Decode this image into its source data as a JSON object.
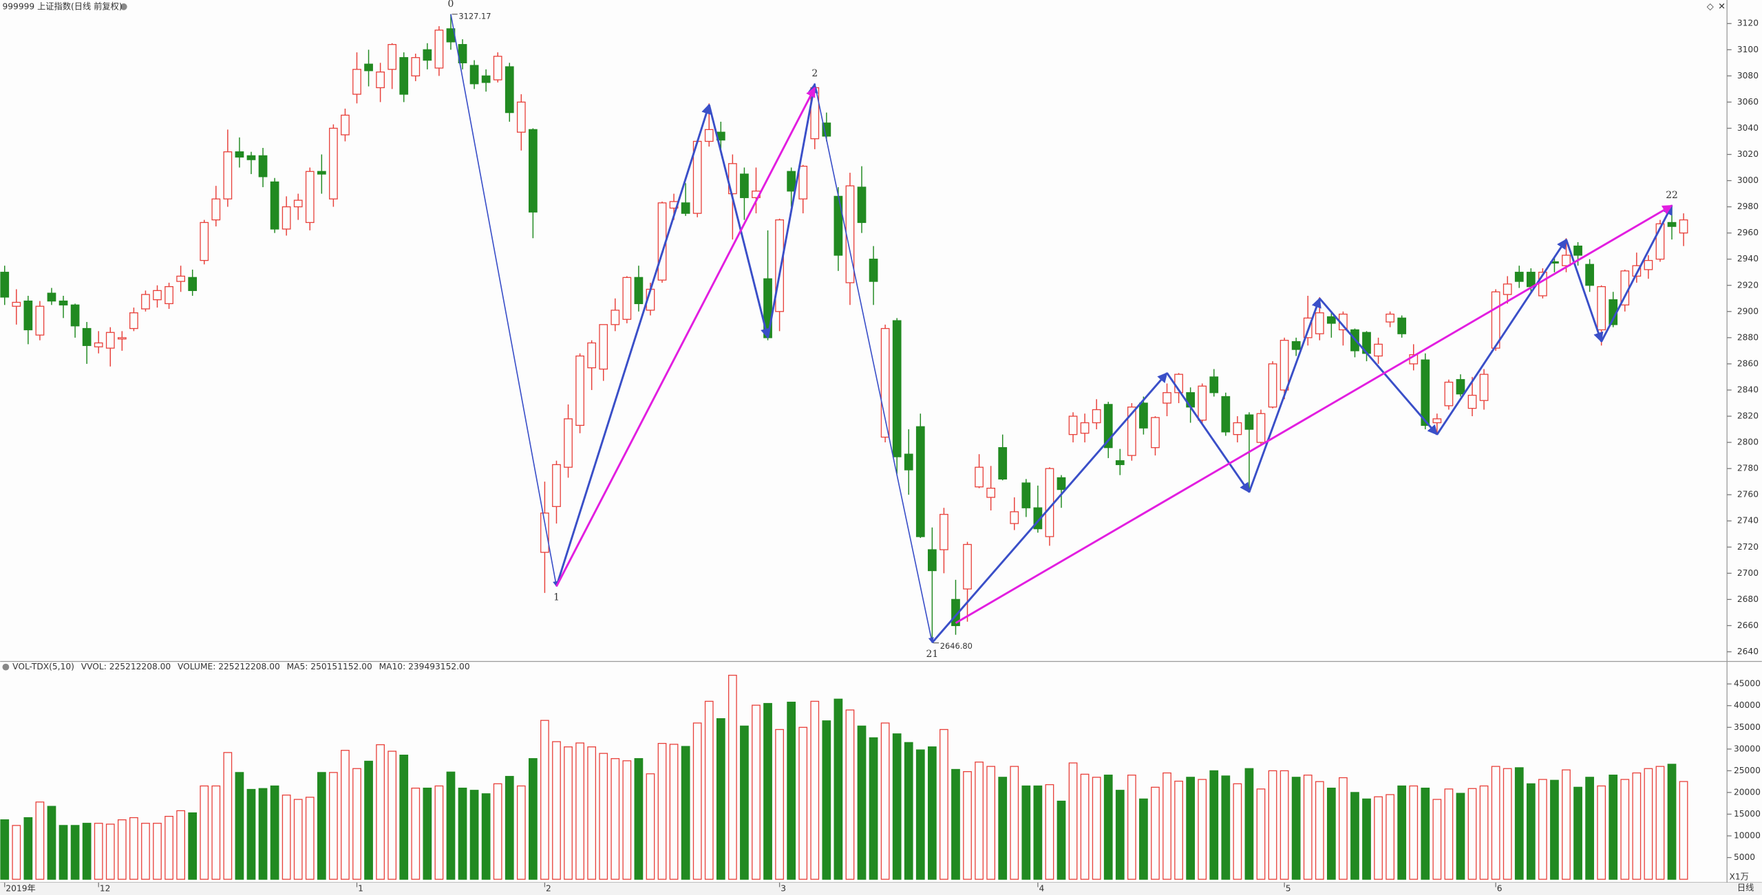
{
  "chart_data": [
    {
      "type": "candlestick",
      "title": "999999 上证指数(日线 前复权)",
      "up_color": "#e8403a",
      "down_color": "#218a21",
      "ylim": [
        2633.5,
        3138
      ],
      "yticks": [
        2640,
        2660,
        2680,
        2700,
        2720,
        2740,
        2760,
        2780,
        2800,
        2820,
        2840,
        2860,
        2880,
        2900,
        2920,
        2940,
        2960,
        2980,
        3000,
        3020,
        3040,
        3060,
        3080,
        3100,
        3120
      ],
      "open": [
        2930,
        2904,
        2908,
        2882,
        2914,
        2908,
        2905,
        2887,
        2873,
        2872,
        2879,
        2887,
        2902,
        2909,
        2906,
        2923,
        2926,
        2939,
        2970,
        2986,
        3022,
        3019,
        3019,
        2999,
        2963,
        2980,
        2968,
        3007,
        2986,
        3035,
        3066,
        3089,
        3071,
        3085,
        3094,
        3080,
        3100,
        3086,
        3116,
        3104,
        3088,
        3080,
        3077,
        3087,
        3037,
        3039,
        2716,
        2751,
        2781,
        2813,
        2857,
        2856,
        2890,
        2894,
        2926,
        2901,
        2924,
        2979,
        2983,
        2975,
        3030,
        3037,
        2990,
        3005,
        2987,
        2925,
        2900,
        3007,
        2986,
        3032,
        3044,
        2988,
        2922,
        2995,
        2940,
        2804,
        2893,
        2791,
        2812,
        2718,
        2718,
        2680,
        2688,
        2766,
        2758,
        2796,
        2738,
        2769,
        2750,
        2728,
        2773,
        2806,
        2807,
        2815,
        2829,
        2786,
        2790,
        2830,
        2796,
        2830,
        2838,
        2838,
        2817,
        2850,
        2835,
        2806,
        2821,
        2800,
        2827,
        2840,
        2877,
        2880,
        2883,
        2896,
        2886,
        2886,
        2884,
        2866,
        2892,
        2895,
        2860,
        2863,
        2815,
        2828,
        2848,
        2826,
        2832,
        2872,
        2913,
        2930,
        2930,
        2912,
        2938,
        2935,
        2950,
        2936,
        2886,
        2909,
        2905,
        2927,
        2932,
        2940,
        2968,
        2960
      ],
      "high": [
        2935,
        2917,
        2912,
        2908,
        2918,
        2912,
        2906,
        2892,
        2885,
        2888,
        2885,
        2903,
        2916,
        2920,
        2922,
        2935,
        2932,
        2970,
        2996,
        3039,
        3033,
        3022,
        3025,
        3002,
        2988,
        2990,
        3010,
        3020,
        3043,
        3055,
        3098,
        3100,
        3090,
        3105,
        3098,
        3097,
        3105,
        3118,
        3127.17,
        3108,
        3092,
        3085,
        3098,
        3090,
        3066,
        3040,
        2770,
        2786,
        2829,
        2868,
        2878,
        2890,
        2910,
        2927,
        2935,
        2922,
        2984,
        2990,
        2998,
        3031,
        3059,
        3045,
        3020,
        3010,
        3010,
        2962,
        2971,
        3010,
        3012,
        3074,
        3052,
        2995,
        3006,
        3011,
        2950,
        2890,
        2895,
        2810,
        2822,
        2735,
        2750,
        2695,
        2724,
        2791,
        2782,
        2806,
        2758,
        2772,
        2767,
        2781,
        2775,
        2823,
        2822,
        2833,
        2831,
        2795,
        2830,
        2835,
        2820,
        2845,
        2853,
        2842,
        2845,
        2856,
        2838,
        2820,
        2823,
        2825,
        2862,
        2880,
        2880,
        2912,
        2911,
        2900,
        2900,
        2887,
        2885,
        2880,
        2900,
        2897,
        2875,
        2868,
        2822,
        2848,
        2852,
        2850,
        2856,
        2917,
        2927,
        2935,
        2933,
        2933,
        2942,
        2956,
        2953,
        2940,
        2920,
        2915,
        2932,
        2945,
        2943,
        2970,
        2981,
        2975
      ],
      "low": [
        2905,
        2890,
        2875,
        2878,
        2905,
        2895,
        2880,
        2860,
        2868,
        2858,
        2870,
        2885,
        2900,
        2903,
        2902,
        2915,
        2912,
        2936,
        2965,
        2980,
        3010,
        3005,
        2995,
        2960,
        2958,
        2970,
        2962,
        2990,
        2980,
        3030,
        3059,
        3072,
        3060,
        3070,
        3060,
        3076,
        3085,
        3080,
        3100,
        3085,
        3070,
        3068,
        3075,
        3045,
        3023,
        2956,
        2685,
        2738,
        2773,
        2807,
        2840,
        2847,
        2885,
        2891,
        2900,
        2897,
        2922,
        2970,
        2973,
        2972,
        3026,
        3021,
        2955,
        2970,
        2975,
        2878,
        2885,
        2980,
        2975,
        3024,
        3030,
        2931,
        2905,
        2960,
        2905,
        2800,
        2776,
        2760,
        2727,
        2646.8,
        2700,
        2653,
        2663,
        2765,
        2748,
        2771,
        2733,
        2743,
        2731,
        2721,
        2750,
        2800,
        2800,
        2810,
        2788,
        2775,
        2786,
        2806,
        2790,
        2820,
        2830,
        2815,
        2814,
        2835,
        2805,
        2800,
        2762,
        2798,
        2826,
        2833,
        2866,
        2874,
        2878,
        2880,
        2874,
        2865,
        2862,
        2860,
        2888,
        2880,
        2855,
        2810,
        2806,
        2825,
        2835,
        2820,
        2825,
        2870,
        2906,
        2918,
        2915,
        2910,
        2930,
        2930,
        2935,
        2915,
        2874,
        2888,
        2900,
        2922,
        2925,
        2938,
        2955,
        2950
      ],
      "close": [
        2911,
        2907,
        2886,
        2904,
        2908,
        2905,
        2889,
        2874,
        2876,
        2884,
        2880,
        2899,
        2913,
        2916,
        2919,
        2927,
        2916,
        2968,
        2986,
        3022,
        3018,
        3016,
        3003,
        2963,
        2980,
        2985,
        3007,
        3005,
        3040,
        3050,
        3085,
        3084,
        3083,
        3104,
        3066,
        3094,
        3092,
        3115,
        3106,
        3090,
        3074,
        3075,
        3095,
        3052,
        3060,
        2976,
        2746,
        2783,
        2818,
        2866,
        2876,
        2890,
        2901,
        2926,
        2906,
        2917,
        2983,
        2984,
        2975,
        3030,
        3039,
        3031,
        3013,
        2987,
        2992,
        2880,
        2970,
        2992,
        3011,
        3071,
        3034,
        2943,
        2996,
        2968,
        2923,
        2887,
        2789,
        2779,
        2728,
        2702,
        2745,
        2660,
        2722,
        2781,
        2765,
        2772,
        2747,
        2750,
        2734,
        2780,
        2764,
        2820,
        2815,
        2825,
        2796,
        2783,
        2827,
        2811,
        2819,
        2838,
        2852,
        2827,
        2843,
        2838,
        2808,
        2815,
        2810,
        2822,
        2860,
        2878,
        2871,
        2895,
        2899,
        2891,
        2898,
        2870,
        2868,
        2875,
        2898,
        2883,
        2867,
        2813,
        2818,
        2846,
        2837,
        2836,
        2852,
        2915,
        2921,
        2923,
        2919,
        2930,
        2937,
        2943,
        2943,
        2920,
        2919,
        2890,
        2931,
        2935,
        2939,
        2967,
        2965,
        2970
      ],
      "waves": [
        {
          "color": "#3a4fc8",
          "x": [
            38,
            47,
            60,
            65,
            69,
            79,
            99,
            106,
            112,
            122,
            133,
            136,
            142
          ],
          "y": [
            3127.17,
            2690,
            3058,
            2880,
            3074,
            2647,
            2853,
            2762,
            2910,
            2806,
            2955,
            2877,
            2981
          ]
        },
        {
          "color": "#e21ee0",
          "x": [
            47,
            69
          ],
          "y": [
            2690,
            3071
          ]
        },
        {
          "color": "#e21ee0",
          "x": [
            81,
            142
          ],
          "y": [
            2662,
            2981
          ]
        }
      ],
      "pivots": [
        {
          "label": "0",
          "x": 38,
          "y": 3127.17
        },
        {
          "label": "1",
          "x": 47,
          "y": 2690
        },
        {
          "label": "2",
          "x": 69,
          "y": 3074
        },
        {
          "label": "21",
          "x": 79,
          "y": 2646.8
        },
        {
          "label": "22",
          "x": 142,
          "y": 2981
        }
      ],
      "extremes": [
        {
          "x": 38,
          "value": 3127.17,
          "label": "3127.17"
        },
        {
          "x": 79,
          "value": 2646.8,
          "label": "2646.80"
        }
      ]
    },
    {
      "type": "bar",
      "header": [
        "VOL-TDX(5,10)",
        "VVOL: 225212208.00",
        "VOLUME: 225212208.00",
        "MA5: 250151152.00",
        "MA10: 239493152.00"
      ],
      "header_colors": [
        "#222222",
        "#222222",
        "#1f7fd0",
        "#1f7fd0",
        "#a0209a"
      ],
      "unit": "X1万",
      "period": "日线",
      "ylim": [
        0,
        47340
      ],
      "yticks": [
        5000,
        10000,
        15000,
        20000,
        25000,
        30000,
        35000,
        40000,
        45000
      ],
      "categories": [
        "2019年",
        null,
        null,
        null,
        null,
        null,
        null,
        null,
        "12",
        null,
        null,
        null,
        null,
        null,
        null,
        null,
        null,
        null,
        null,
        null,
        null,
        null,
        null,
        null,
        null,
        null,
        null,
        null,
        null,
        null,
        "1",
        null,
        null,
        null,
        null,
        null,
        null,
        null,
        null,
        null,
        null,
        null,
        null,
        null,
        null,
        null,
        "2",
        null,
        null,
        null,
        null,
        null,
        null,
        null,
        null,
        null,
        null,
        null,
        null,
        null,
        null,
        null,
        null,
        null,
        null,
        null,
        "3",
        null,
        null,
        null,
        null,
        null,
        null,
        null,
        null,
        null,
        null,
        null,
        null,
        null,
        null,
        null,
        null,
        null,
        null,
        null,
        null,
        null,
        "4",
        null,
        null,
        null,
        null,
        null,
        null,
        null,
        null,
        null,
        null,
        null,
        null,
        null,
        null,
        null,
        null,
        null,
        null,
        null,
        null,
        "5",
        null,
        null,
        null,
        null,
        null,
        null,
        null,
        null,
        null,
        null,
        null,
        null,
        null,
        null,
        null,
        null,
        null,
        "6",
        null,
        null,
        null,
        null,
        null,
        null,
        null,
        null,
        null,
        null,
        null,
        null,
        null,
        null,
        null,
        null
      ],
      "values": [
        13700,
        12400,
        14200,
        17800,
        16800,
        12400,
        12400,
        12900,
        12900,
        12700,
        13700,
        14200,
        12900,
        12900,
        14500,
        15800,
        15300,
        21500,
        21500,
        29200,
        24600,
        20700,
        20900,
        21500,
        19400,
        18400,
        18900,
        24600,
        24600,
        29700,
        25500,
        27200,
        31000,
        29500,
        28600,
        21000,
        21000,
        21500,
        24700,
        21000,
        20500,
        19700,
        22000,
        23700,
        21500,
        27800,
        36600,
        31700,
        30500,
        31400,
        30500,
        29000,
        27800,
        27300,
        27800,
        24300,
        31300,
        31100,
        30600,
        36000,
        41000,
        37000,
        47000,
        35300,
        40100,
        40500,
        34500,
        40800,
        35000,
        41000,
        36500,
        41500,
        39000,
        35300,
        32600,
        36000,
        33500,
        31500,
        29800,
        30500,
        34500,
        25300,
        24800,
        27000,
        26000,
        23500,
        26000,
        21500,
        21500,
        21800,
        18000,
        26800,
        24200,
        23500,
        24000,
        20500,
        24000,
        18500,
        21200,
        24500,
        22600,
        23500,
        23000,
        25000,
        23800,
        22000,
        25500,
        20800,
        25000,
        25000,
        23500,
        24000,
        22500,
        21000,
        23400,
        20000,
        18500,
        19000,
        19500,
        21500,
        21500,
        21000,
        18400,
        20800,
        19800,
        20900,
        21500,
        26000,
        25500,
        25700,
        22000,
        23000,
        22800,
        25200,
        21200,
        23500,
        21500,
        24000,
        23000,
        24500,
        25500,
        26000,
        26500,
        22521
      ]
    }
  ]
}
